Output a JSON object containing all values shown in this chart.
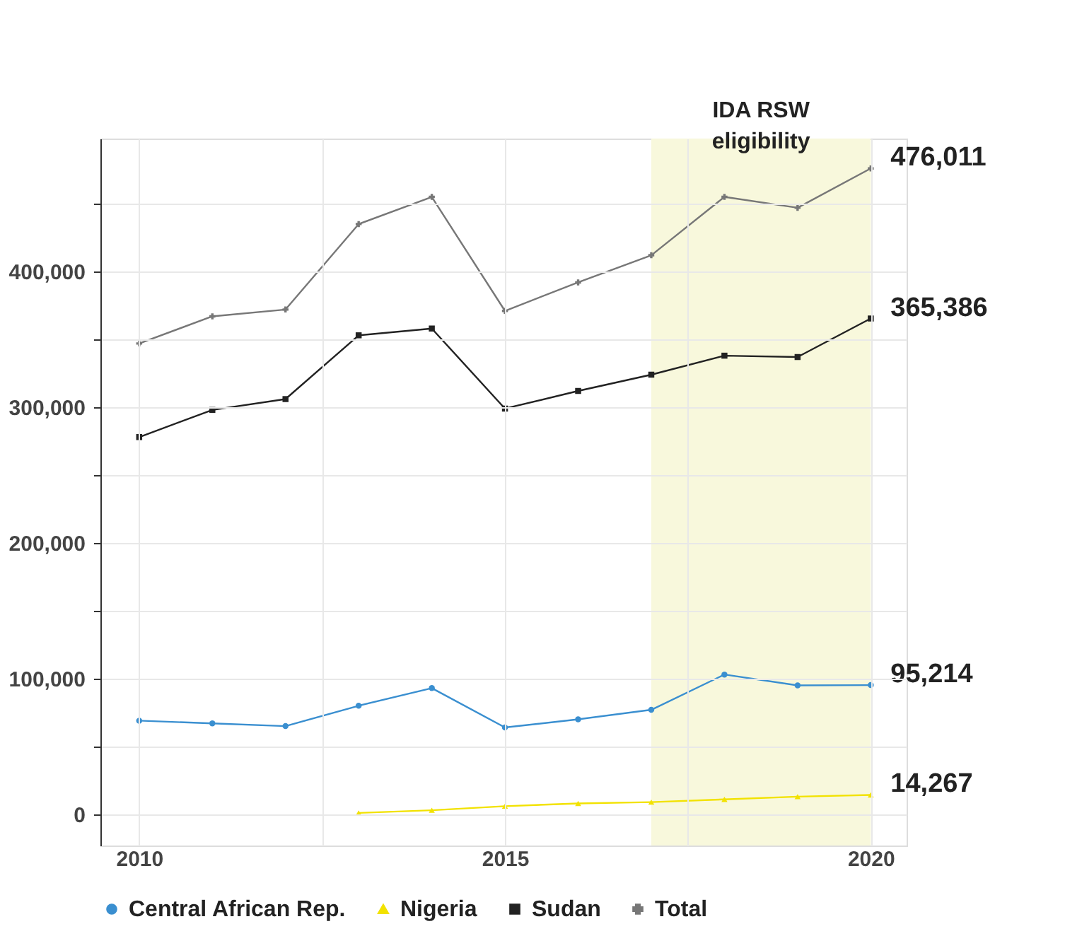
{
  "chart_data": {
    "type": "line",
    "x": [
      2010,
      2011,
      2012,
      2013,
      2014,
      2015,
      2016,
      2017,
      2018,
      2019,
      2020
    ],
    "series": [
      {
        "name": "Central African Rep.",
        "color": "#3a8fd0",
        "marker": "circle",
        "values": [
          69000,
          67000,
          65000,
          80000,
          93000,
          64000,
          70000,
          77000,
          103000,
          95000,
          95214
        ],
        "value_labels": [
          null,
          null,
          null,
          null,
          null,
          null,
          null,
          null,
          null,
          null,
          "95,214"
        ]
      },
      {
        "name": "Nigeria",
        "color": "#f2e200",
        "marker": "triangle",
        "values": [
          null,
          null,
          null,
          1000,
          3000,
          6000,
          8000,
          9000,
          11000,
          13000,
          14267
        ],
        "value_labels": [
          null,
          null,
          null,
          null,
          null,
          null,
          null,
          null,
          null,
          null,
          "14,267"
        ]
      },
      {
        "name": "Sudan",
        "color": "#222222",
        "marker": "square",
        "values": [
          278000,
          298000,
          306000,
          353000,
          358000,
          299000,
          312000,
          324000,
          338000,
          337000,
          365386
        ],
        "value_labels": [
          null,
          null,
          null,
          null,
          null,
          null,
          null,
          null,
          null,
          null,
          "365,386"
        ]
      },
      {
        "name": "Total",
        "color": "#777777",
        "marker": "cross",
        "values": [
          347000,
          367000,
          372000,
          435000,
          455000,
          371000,
          392000,
          412000,
          455000,
          447000,
          476011
        ],
        "value_labels": [
          null,
          null,
          null,
          null,
          null,
          null,
          null,
          null,
          null,
          null,
          "476,011"
        ]
      }
    ],
    "xlim": [
      2009.47,
      2020.49
    ],
    "xticks": [
      2010,
      {
        "value": 2012.5,
        "label": null
      },
      2015,
      {
        "value": 2017.5,
        "label": null
      },
      2020
    ],
    "ylim": [
      -23000,
      498000
    ],
    "yticks": [
      0,
      {
        "value": 50000,
        "label": null
      },
      {
        "value": 100000,
        "label": "100,000"
      },
      {
        "value": 150000,
        "label": null
      },
      {
        "value": 200000,
        "label": "200,000"
      },
      {
        "value": 250000,
        "label": null
      },
      {
        "value": 300000,
        "label": "300,000"
      },
      {
        "value": 350000,
        "label": null
      },
      {
        "value": 400000,
        "label": "400,000"
      },
      {
        "value": 450000,
        "label": null
      }
    ],
    "bands": [
      {
        "axis": "x",
        "from": 2017,
        "to": 2020,
        "label": "IDA RSW eligibility",
        "color": "#f8f8dc"
      }
    ],
    "grid": true,
    "legend": "bottom",
    "line_style": "solid"
  }
}
